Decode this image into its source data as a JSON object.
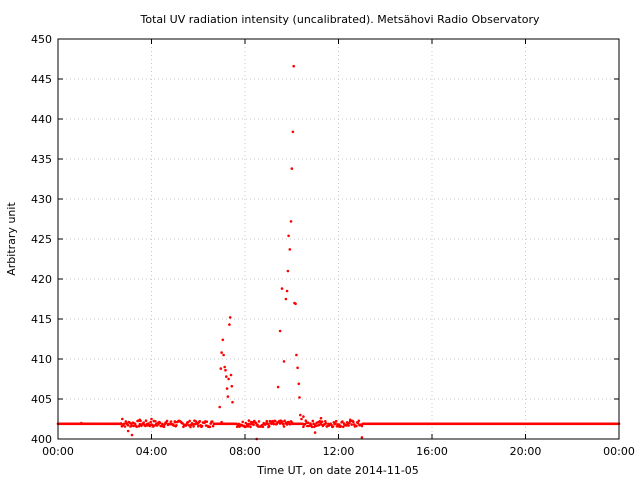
{
  "chart_data": {
    "type": "scatter",
    "title": "Total UV radiation intensity (uncalibrated). Metsähovi Radio Observatory",
    "xlabel": "Time UT, on date 2014-11-05",
    "ylabel": "Arbitrary unit",
    "xlim": [
      "00:00",
      "24:00"
    ],
    "ylim": [
      400,
      450
    ],
    "x_ticks": [
      "00:00",
      "04:00",
      "08:00",
      "12:00",
      "16:00",
      "20:00",
      "00:00"
    ],
    "y_ticks": [
      400,
      405,
      410,
      415,
      420,
      425,
      430,
      435,
      440,
      445,
      450
    ],
    "grid": true,
    "marker_color": "#ff0000",
    "baseline": 401.9,
    "noisy_intervals": [
      [
        "02:40",
        "06:40"
      ],
      [
        "07:40",
        "10:00"
      ],
      [
        "10:30",
        "13:00"
      ]
    ],
    "peaks": [
      {
        "x": [
          "06:55",
          "06:58",
          "07:00",
          "07:03",
          "07:05",
          "07:08",
          "07:10",
          "07:12",
          "07:14",
          "07:16",
          "07:18",
          "07:20",
          "07:22",
          "07:24",
          "07:26",
          "07:28"
        ],
        "y": [
          404.0,
          408.8,
          410.8,
          412.4,
          410.5,
          409.0,
          408.6,
          407.8,
          406.3,
          405.3,
          407.5,
          414.3,
          415.2,
          408.0,
          406.6,
          404.6
        ]
      },
      {
        "x": [
          "09:25",
          "09:30",
          "09:35",
          "09:40",
          "09:45",
          "09:48",
          "09:50",
          "09:52",
          "09:55",
          "09:58",
          "10:00",
          "10:03",
          "10:05",
          "10:07",
          "10:10",
          "10:12",
          "10:15",
          "10:18",
          "10:20",
          "10:22",
          "10:25"
        ],
        "y": [
          406.5,
          413.5,
          418.8,
          409.7,
          417.5,
          418.5,
          421.0,
          425.4,
          423.7,
          427.2,
          433.8,
          438.4,
          446.6,
          417.0,
          416.9,
          410.5,
          408.9,
          406.9,
          405.2,
          403.0,
          402.5
        ]
      }
    ],
    "sample_points": {
      "x": [
        "01:00",
        "02:00",
        "02:45",
        "03:00",
        "03:10",
        "03:30",
        "04:00",
        "05:00",
        "06:00",
        "07:00",
        "08:10",
        "08:30",
        "09:00",
        "09:30",
        "10:30",
        "11:00",
        "11:15",
        "12:00",
        "12:30",
        "13:00",
        "16:00",
        "20:00"
      ],
      "y": [
        402.0,
        401.9,
        402.5,
        401.0,
        400.5,
        402.4,
        402.5,
        402.2,
        402.0,
        402.1,
        402.3,
        400.0,
        401.5,
        402.2,
        402.8,
        400.8,
        402.6,
        401.6,
        402.4,
        400.2,
        401.9,
        401.9
      ]
    }
  }
}
